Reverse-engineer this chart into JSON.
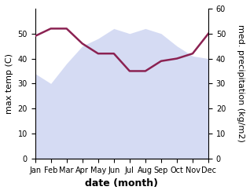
{
  "months": [
    "Jan",
    "Feb",
    "Mar",
    "Apr",
    "May",
    "Jun",
    "Jul",
    "Aug",
    "Sep",
    "Oct",
    "Nov",
    "Dec"
  ],
  "temp_max": [
    34,
    30,
    38,
    45,
    48,
    52,
    50,
    52,
    50,
    45,
    41,
    40
  ],
  "precipitation": [
    49,
    52,
    52,
    46,
    42,
    42,
    35,
    35,
    39,
    40,
    42,
    50
  ],
  "temp_fill_color": "#c8d0f0",
  "temp_fill_alpha": 0.75,
  "precip_color": "#8b2252",
  "temp_ylim": [
    0,
    60
  ],
  "temp_yticks": [
    0,
    10,
    20,
    30,
    40,
    50
  ],
  "precip_ylim": [
    0,
    60
  ],
  "precip_yticks": [
    0,
    10,
    20,
    30,
    40,
    50,
    60
  ],
  "xlabel": "date (month)",
  "ylabel_left": "max temp (C)",
  "ylabel_right": "med. precipitation (kg/m2)",
  "bg_color": "#ffffff",
  "tick_fontsize": 7,
  "label_fontsize": 8,
  "xlabel_fontsize": 9,
  "precip_linewidth": 1.8
}
